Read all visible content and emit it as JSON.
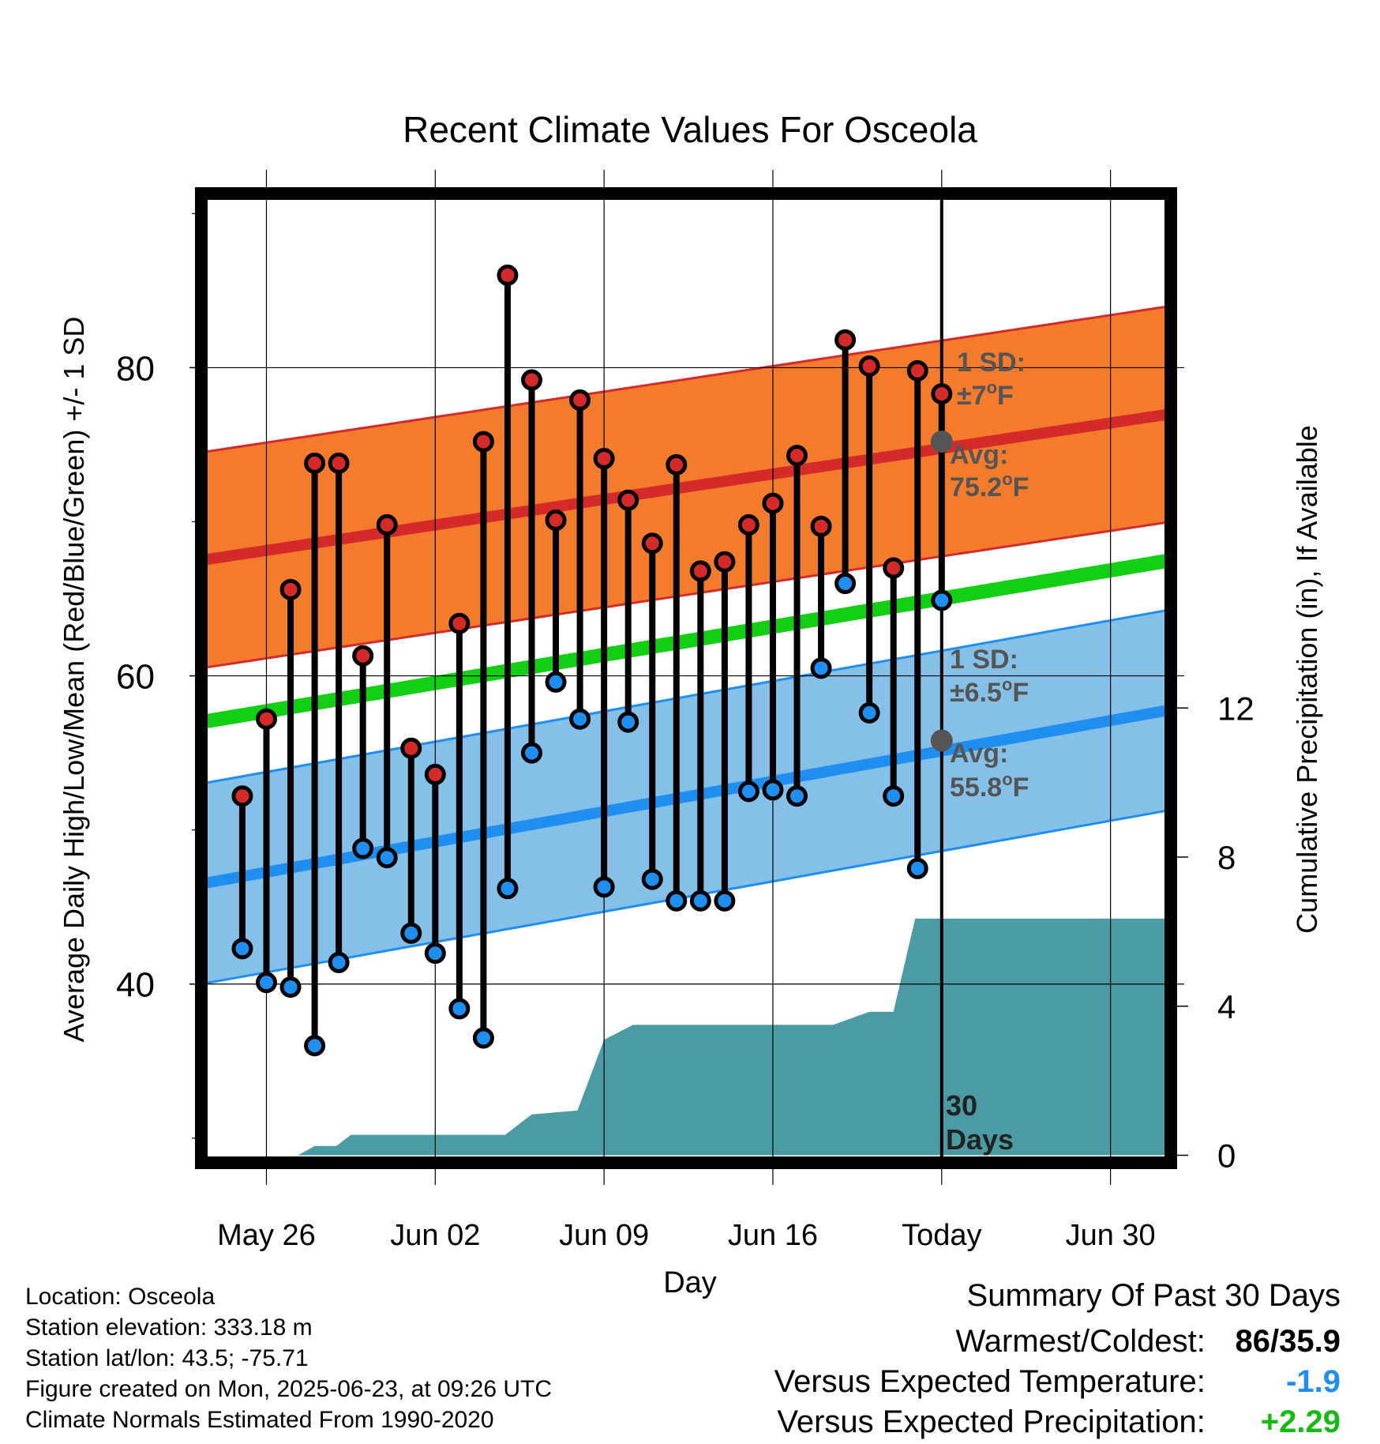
{
  "chart_data": {
    "type": "line",
    "title": "Recent Climate Values For Osceola",
    "xlabel": "Day",
    "ylabel": "Average Daily High/Low/Mean (Red/Blue/Green) +/- 1 SD",
    "y2label": "Cumulative Precipitation (in), If Available",
    "x_ticks": [
      {
        "day": 0,
        "label": "May 26"
      },
      {
        "day": 7,
        "label": "Jun 02"
      },
      {
        "day": 14,
        "label": "Jun 09"
      },
      {
        "day": 21,
        "label": "Jun 16"
      },
      {
        "day": 28,
        "label": "Today"
      },
      {
        "day": 35,
        "label": "Jun 30"
      }
    ],
    "x_range_days": [
      -2.7,
      37.5
    ],
    "x_range": [
      "May 23 (approx.)",
      "Jul 02 (approx.)"
    ],
    "y_range": [
      28.4,
      91.3
    ],
    "y_ticks": [
      40,
      60,
      80
    ],
    "y2_range": [
      -0.2,
      25.8
    ],
    "y2_ticks": [
      0,
      4,
      8,
      12
    ],
    "grid": true,
    "daily_high": [
      52.2,
      57.2,
      65.6,
      73.8,
      73.8,
      61.3,
      69.8,
      55.3,
      53.6,
      63.4,
      75.2,
      86.0,
      79.2,
      70.1,
      77.9,
      74.1,
      71.4,
      68.6,
      73.7,
      66.8,
      67.4,
      69.8,
      71.2,
      74.3,
      69.7,
      81.8,
      80.1,
      67.0,
      79.8,
      78.3
    ],
    "daily_low": [
      42.3,
      40.1,
      39.8,
      36.0,
      41.4,
      48.8,
      48.2,
      43.3,
      42.0,
      38.4,
      36.5,
      46.2,
      55.0,
      59.6,
      57.2,
      46.3,
      57.0,
      46.8,
      45.4,
      45.4,
      45.4,
      52.5,
      52.6,
      52.2,
      60.5,
      66.0,
      57.6,
      52.2,
      47.5,
      64.9
    ],
    "normals": {
      "high_mean_start": 67.5,
      "high_mean_end": 77.0,
      "high_sd": 7,
      "low_mean_start": 46.5,
      "low_mean_end": 57.8,
      "low_sd": 6.5,
      "mean_start": 57.0,
      "mean_end": 67.5
    },
    "cumulative_precip": [
      {
        "day": 1.3,
        "value": 0.0
      },
      {
        "day": 2.0,
        "value": 0.25
      },
      {
        "day": 2.9,
        "value": 0.25
      },
      {
        "day": 3.5,
        "value": 0.55
      },
      {
        "day": 9.9,
        "value": 0.55
      },
      {
        "day": 11.0,
        "value": 1.1
      },
      {
        "day": 12.9,
        "value": 1.2
      },
      {
        "day": 14.0,
        "value": 3.1
      },
      {
        "day": 15.2,
        "value": 3.5
      },
      {
        "day": 23.5,
        "value": 3.5
      },
      {
        "day": 25.0,
        "value": 3.85
      },
      {
        "day": 26.0,
        "value": 3.85
      },
      {
        "day": 26.9,
        "value": 6.35
      },
      {
        "day": 37.5,
        "value": 6.35
      }
    ],
    "annotations": {
      "high_sd_label_1": "1 SD:",
      "high_sd_label_2": "±7",
      "high_avg_label_1": "Avg:",
      "high_avg_label_2": "75.2",
      "low_sd_label_1": "1 SD:",
      "low_sd_label_2": "±6.5",
      "low_avg_label_1": "Avg:",
      "low_avg_label_2": "55.8",
      "degree_mark": "o",
      "unit_letter": "F",
      "window_label_1": "30",
      "window_label_2": "Days"
    },
    "today_high_avg": 75.2,
    "today_low_avg": 55.8,
    "colors": {
      "high_band": "#f47b2c",
      "high_line": "#d42a2a",
      "low_band": "#84c0e8",
      "low_line": "#1e8ff0",
      "mean_line": "#13cf13",
      "precip": "#4b9ba4",
      "high_dot": "#d42a2a",
      "low_dot": "#1e8ff0",
      "avg_marker": "#555555",
      "annotation_text": "#555555"
    }
  },
  "footer": {
    "location": "Location: Osceola",
    "elevation": "Station elevation: 333.18 m",
    "latlon": "Station lat/lon: 43.5; -75.71",
    "created": "Figure created on Mon, 2025-06-23, at 09:26 UTC",
    "normals": "Climate Normals Estimated From 1990-2020"
  },
  "summary": {
    "title": "Summary Of Past 30 Days",
    "warmest_label": "Warmest/Coldest:",
    "warmest_value": "86/35.9",
    "temp_label": "Versus Expected Temperature:",
    "temp_value": "-1.9",
    "temp_color": "#1e8ff0",
    "precip_label": "Versus Expected Precipitation:",
    "precip_value": "+2.29",
    "precip_color": "#13bb13"
  }
}
